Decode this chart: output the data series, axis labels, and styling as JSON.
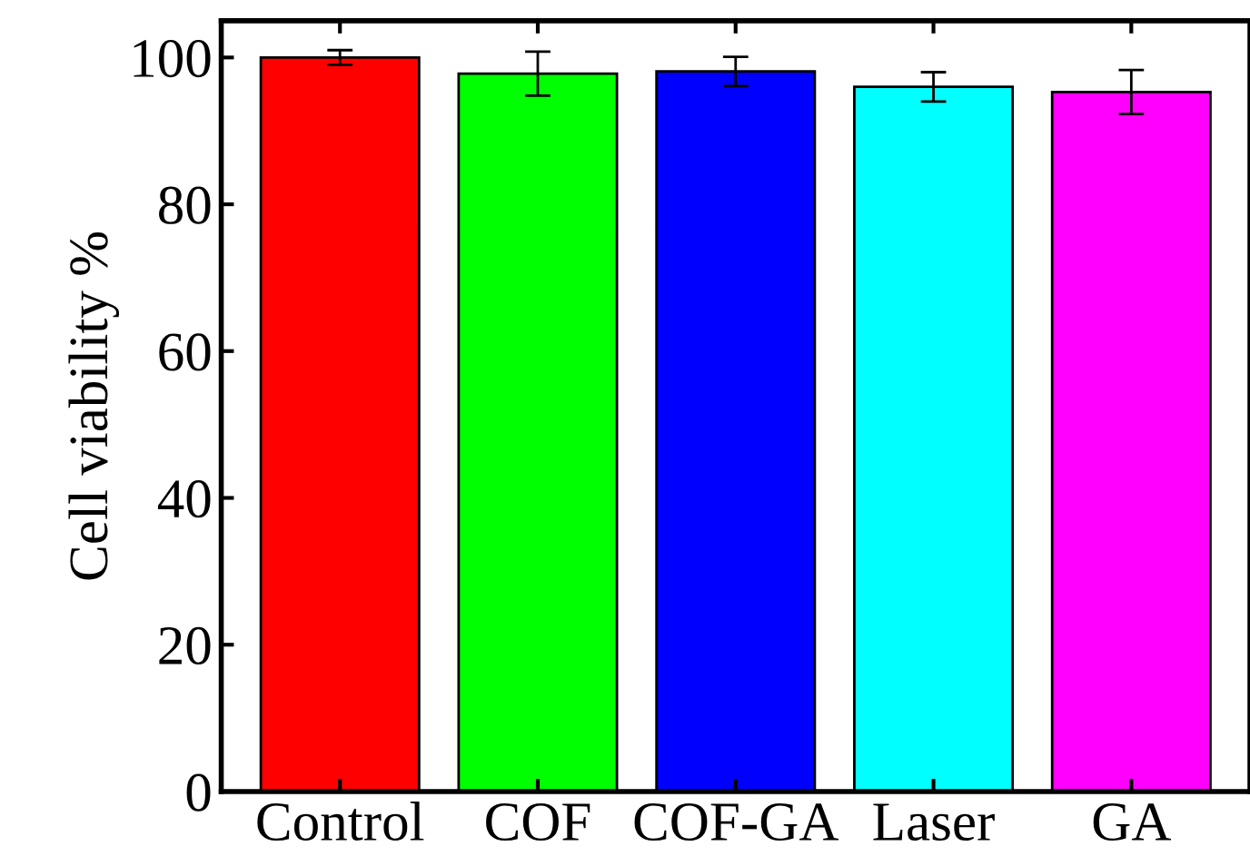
{
  "chart_data": {
    "type": "bar",
    "ylabel": "Cell viability %",
    "categories": [
      "Control",
      "COF",
      "COF-GA",
      "Laser",
      "GA"
    ],
    "values": [
      100,
      97.8,
      98.1,
      96.0,
      95.3
    ],
    "errors": [
      1,
      3,
      2,
      2,
      3
    ],
    "colors": [
      "#ff0000",
      "#00ff00",
      "#0000ff",
      "#00ffff",
      "#ff00ff"
    ],
    "ylim": [
      0,
      105
    ],
    "yticks": [
      0,
      20,
      40,
      60,
      80,
      100
    ],
    "grid": false,
    "legend": false
  }
}
